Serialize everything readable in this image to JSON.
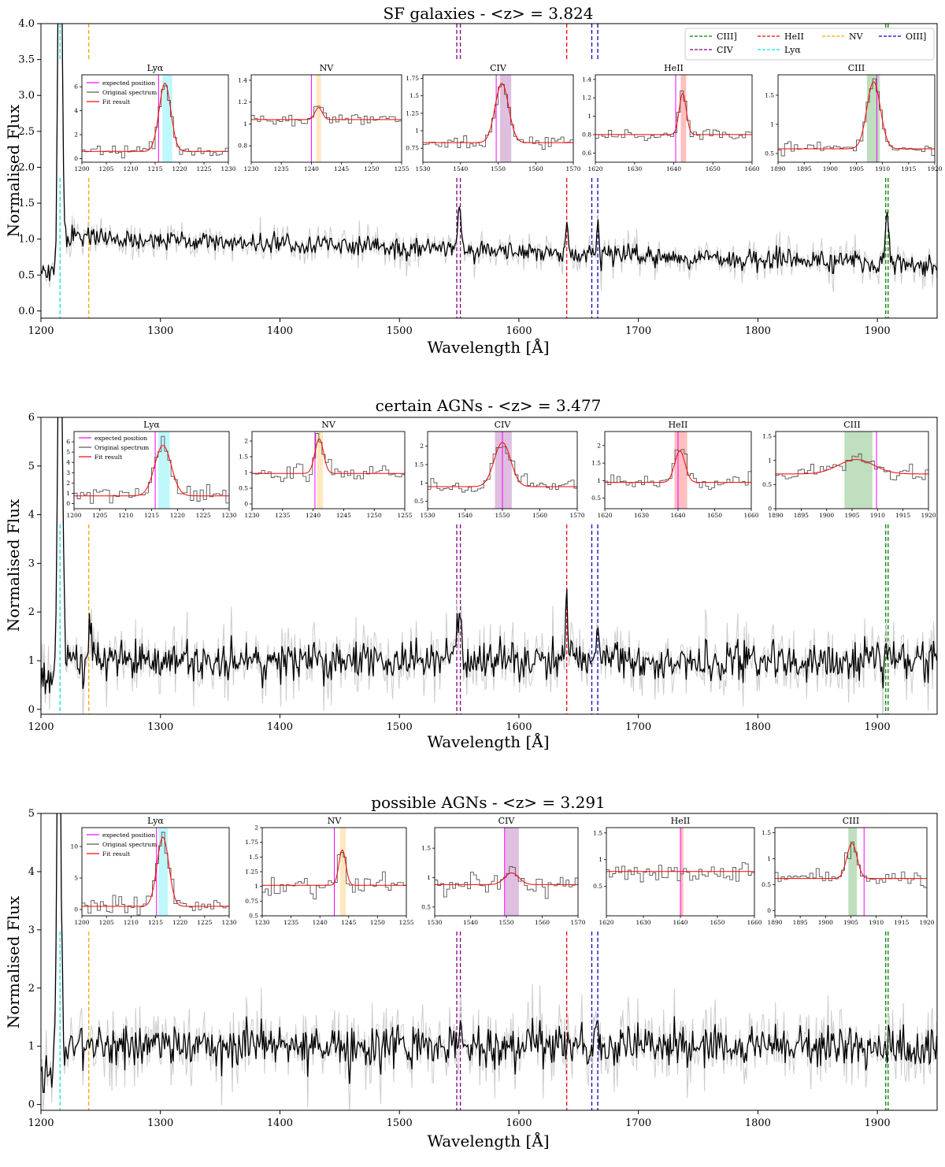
{
  "figure": {
    "xlabel": "Wavelength [Å]",
    "ylabel": "Normalised Flux"
  },
  "legend": {
    "items": [
      {
        "label": "CIII]",
        "color": "#008000"
      },
      {
        "label": "CIV",
        "color": "#800080"
      },
      {
        "label": "HeII",
        "color": "#ff0000"
      },
      {
        "label": "Lyα",
        "color": "#00e5ee"
      },
      {
        "label": "NV",
        "color": "#ffa500"
      },
      {
        "label": "OIII]",
        "color": "#0000cd"
      }
    ]
  },
  "inset_legend": {
    "items": [
      {
        "label": "expected position",
        "color": "#ff00ff"
      },
      {
        "label": "Original spectrum",
        "color": "#555555"
      },
      {
        "label": "Fit result",
        "color": "#ff0000"
      }
    ]
  },
  "chart_data": [
    {
      "type": "line",
      "title": "SF galaxies - <z> = 3.824",
      "xlabel": "Wavelength [Å]",
      "ylabel": "Normalised Flux",
      "xlim": [
        1200,
        1950
      ],
      "ylim": [
        -0.1,
        4.0
      ],
      "xticks": [
        1200,
        1300,
        1400,
        1500,
        1600,
        1700,
        1800,
        1900
      ],
      "yticks": [
        0.0,
        0.5,
        1.0,
        1.5,
        2.0,
        2.5,
        3.0,
        3.5,
        4.0
      ],
      "ytick_labels": [
        "0.0",
        "0.5",
        "1.0",
        "1.5",
        "2.0",
        "2.5",
        "3.0",
        "3.5",
        "4.0"
      ],
      "continuum": 1.0,
      "noise": 0.12,
      "features": [
        {
          "x": 1216,
          "amp": 6.0,
          "sigma": 1.5
        },
        {
          "x": 1550,
          "amp": 0.6,
          "sigma": 1.5
        },
        {
          "x": 1640,
          "amp": 0.4,
          "sigma": 1.0
        },
        {
          "x": 1666,
          "amp": 0.45,
          "sigma": 1.0
        },
        {
          "x": 1908,
          "amp": 0.7,
          "sigma": 1.5
        }
      ],
      "series": [
        {
          "name": "CIII]",
          "color": "#008000",
          "x": [
            1907,
            1909
          ]
        },
        {
          "name": "CIV",
          "color": "#800080",
          "x": [
            1548,
            1551
          ]
        },
        {
          "name": "HeII",
          "color": "#ff0000",
          "x": [
            1640
          ]
        },
        {
          "name": "Lyα",
          "color": "#00e5ee",
          "x": [
            1216
          ]
        },
        {
          "name": "NV",
          "color": "#ffa500",
          "x": [
            1240
          ]
        },
        {
          "name": "OIII]",
          "color": "#0000cd",
          "x": [
            1661,
            1666
          ]
        }
      ],
      "insets": [
        {
          "title": "Lyα",
          "xlim": [
            1200,
            1230
          ],
          "xticks": [
            1200,
            1205,
            1210,
            1215,
            1220,
            1225,
            1230
          ],
          "ylim": [
            -0.3,
            7.0
          ],
          "yticks": [
            0,
            2,
            4,
            6
          ],
          "expected": 1215.7,
          "band": [
            1216.5,
            1218.5
          ],
          "band_color": "#00e5ee",
          "fit": {
            "center": 1217.0,
            "amp": 5.7,
            "sigma": 1.2,
            "base": 0.6
          },
          "legend": true
        },
        {
          "title": "NV",
          "xlim": [
            1230,
            1255
          ],
          "xticks": [
            1230,
            1235,
            1240,
            1245,
            1250,
            1255
          ],
          "ylim": [
            0.65,
            1.45
          ],
          "yticks": [
            0.8,
            1.0,
            1.2,
            1.4
          ],
          "expected": 1240.0,
          "band": [
            1240.8,
            1241.6
          ],
          "band_color": "#ffa500",
          "fit": {
            "center": 1241.2,
            "amp": 0.11,
            "sigma": 0.6,
            "base": 1.04
          }
        },
        {
          "title": "CIV",
          "xlim": [
            1530,
            1570
          ],
          "xticks": [
            1530,
            1540,
            1550,
            1560,
            1570
          ],
          "ylim": [
            0.55,
            1.8
          ],
          "yticks": [
            0.75,
            1.0,
            1.25,
            1.5,
            1.75
          ],
          "expected": 1549.5,
          "band": [
            1550.5,
            1553.5
          ],
          "band_color": "#800080",
          "fit": {
            "center": 1551.0,
            "amp": 0.85,
            "sigma": 1.8,
            "base": 0.83
          }
        },
        {
          "title": "HeII",
          "xlim": [
            1620,
            1660
          ],
          "xticks": [
            1620,
            1630,
            1640,
            1650,
            1660
          ],
          "ylim": [
            0.5,
            1.45
          ],
          "yticks": [
            0.6,
            0.8,
            1.0,
            1.2,
            1.4
          ],
          "expected": 1640.5,
          "band": [
            1641.8,
            1643.2
          ],
          "band_color": "#ff0000",
          "fit": {
            "center": 1642.3,
            "amp": 0.45,
            "sigma": 0.9,
            "base": 0.8
          }
        },
        {
          "title": "CIII",
          "xlim": [
            1890,
            1920
          ],
          "xticks": [
            1890,
            1895,
            1900,
            1905,
            1910,
            1915,
            1920
          ],
          "ylim": [
            0.35,
            1.85
          ],
          "yticks": [
            0.5,
            1.0,
            1.5
          ],
          "expected": 1908.9,
          "band": [
            1907.0,
            1909.5
          ],
          "band_color": "#008000",
          "fit": {
            "center": 1908.3,
            "amp": 1.15,
            "sigma": 1.3,
            "base": 0.58
          }
        }
      ]
    },
    {
      "type": "line",
      "title": "certain AGNs - <z> = 3.477",
      "xlabel": "Wavelength [Å]",
      "ylabel": "Normalised Flux",
      "xlim": [
        1200,
        1950
      ],
      "ylim": [
        -0.1,
        6.0
      ],
      "xticks": [
        1200,
        1300,
        1400,
        1500,
        1600,
        1700,
        1800,
        1900
      ],
      "yticks": [
        0,
        1,
        2,
        3,
        4,
        5,
        6
      ],
      "ytick_labels": [
        "0",
        "1",
        "2",
        "3",
        "4",
        "5",
        "6"
      ],
      "continuum": 1.0,
      "noise": 0.35,
      "features": [
        {
          "x": 1216,
          "amp": 8.0,
          "sigma": 1.8
        },
        {
          "x": 1241,
          "amp": 1.0,
          "sigma": 1.2
        },
        {
          "x": 1550,
          "amp": 1.2,
          "sigma": 1.6
        },
        {
          "x": 1640,
          "amp": 1.3,
          "sigma": 1.0
        },
        {
          "x": 1666,
          "amp": 0.6,
          "sigma": 1.0
        }
      ],
      "series": [
        {
          "name": "CIII]",
          "color": "#008000",
          "x": [
            1907,
            1909
          ]
        },
        {
          "name": "CIV",
          "color": "#800080",
          "x": [
            1548,
            1551
          ]
        },
        {
          "name": "HeII",
          "color": "#ff0000",
          "x": [
            1640
          ]
        },
        {
          "name": "Lyα",
          "color": "#00e5ee",
          "x": [
            1216
          ]
        },
        {
          "name": "NV",
          "color": "#ffa500",
          "x": [
            1240
          ]
        },
        {
          "name": "OIII]",
          "color": "#0000cd",
          "x": [
            1661,
            1666
          ]
        }
      ],
      "insets": [
        {
          "title": "Lyα",
          "xlim": [
            1200,
            1230
          ],
          "xticks": [
            1200,
            1205,
            1210,
            1215,
            1220,
            1225,
            1230
          ],
          "ylim": [
            -0.5,
            7.0
          ],
          "yticks": [
            0,
            1,
            2,
            3,
            4,
            5,
            6
          ],
          "expected": 1215.7,
          "band": [
            1216.3,
            1218.5
          ],
          "band_color": "#00e5ee",
          "fit": {
            "center": 1217.2,
            "amp": 4.9,
            "sigma": 1.6,
            "base": 0.75
          },
          "legend": true
        },
        {
          "title": "NV",
          "xlim": [
            1230,
            1255
          ],
          "xticks": [
            1230,
            1235,
            1240,
            1245,
            1250,
            1255
          ],
          "ylim": [
            -0.15,
            2.3
          ],
          "yticks": [
            0.0,
            0.5,
            1.0,
            1.5,
            2.0
          ],
          "expected": 1240.3,
          "band": [
            1240.6,
            1241.6
          ],
          "band_color": "#ffa500",
          "fit": {
            "center": 1241.0,
            "amp": 1.1,
            "sigma": 0.7,
            "base": 0.97
          }
        },
        {
          "title": "CIV",
          "xlim": [
            1530,
            1570
          ],
          "xticks": [
            1530,
            1540,
            1550,
            1560,
            1570
          ],
          "ylim": [
            0.3,
            2.4
          ],
          "yticks": [
            0.5,
            1.0,
            1.5,
            2.0
          ],
          "expected": 1550.0,
          "band": [
            1548.0,
            1552.5
          ],
          "band_color": "#800080",
          "fit": {
            "center": 1550.0,
            "amp": 1.2,
            "sigma": 2.2,
            "base": 0.9
          }
        },
        {
          "title": "HeII",
          "xlim": [
            1620,
            1660
          ],
          "xticks": [
            1620,
            1630,
            1640,
            1650,
            1660
          ],
          "ylim": [
            0.2,
            2.4
          ],
          "yticks": [
            0.5,
            1.0,
            1.5,
            2.0
          ],
          "expected": 1640.0,
          "band": [
            1639.0,
            1642.5
          ],
          "band_color": "#ff0000",
          "fit": {
            "center": 1640.5,
            "amp": 0.9,
            "sigma": 1.4,
            "base": 0.95
          }
        },
        {
          "title": "CIII",
          "xlim": [
            1890,
            1920
          ],
          "xticks": [
            1890,
            1895,
            1900,
            1905,
            1910,
            1915,
            1920
          ],
          "ylim": [
            0.0,
            1.6
          ],
          "yticks": [
            0.0,
            0.5,
            1.0,
            1.5
          ],
          "expected": 1909.8,
          "band": [
            1903.5,
            1909.0
          ],
          "band_color": "#008000",
          "fit": {
            "center": 1905.8,
            "amp": 0.3,
            "sigma": 3.5,
            "base": 0.72
          }
        }
      ]
    },
    {
      "type": "line",
      "title": "possible AGNs - <z> = 3.291",
      "xlabel": "Wavelength [Å]",
      "ylabel": "Normalised Flux",
      "xlim": [
        1200,
        1950
      ],
      "ylim": [
        -0.1,
        5.0
      ],
      "xticks": [
        1200,
        1300,
        1400,
        1500,
        1600,
        1700,
        1800,
        1900
      ],
      "yticks": [
        0,
        1,
        2,
        3,
        4,
        5
      ],
      "ytick_labels": [
        "0",
        "1",
        "2",
        "3",
        "4",
        "5"
      ],
      "continuum": 1.0,
      "noise": 0.3,
      "features": [
        {
          "x": 1215,
          "amp": 7.0,
          "sigma": 1.5
        },
        {
          "x": 1550,
          "amp": 0.3,
          "sigma": 2.0
        },
        {
          "x": 1666,
          "amp": 0.4,
          "sigma": 1.0
        }
      ],
      "series": [
        {
          "name": "CIII]",
          "color": "#008000",
          "x": [
            1907,
            1909
          ]
        },
        {
          "name": "CIV",
          "color": "#800080",
          "x": [
            1548,
            1551
          ]
        },
        {
          "name": "HeII",
          "color": "#ff0000",
          "x": [
            1640
          ]
        },
        {
          "name": "Lyα",
          "color": "#00e5ee",
          "x": [
            1216
          ]
        },
        {
          "name": "NV",
          "color": "#ffa500",
          "x": [
            1240
          ]
        },
        {
          "name": "OIII]",
          "color": "#0000cd",
          "x": [
            1661,
            1666
          ]
        }
      ],
      "insets": [
        {
          "title": "Lyα",
          "xlim": [
            1200,
            1230
          ],
          "xticks": [
            1200,
            1205,
            1210,
            1215,
            1220,
            1225,
            1230
          ],
          "ylim": [
            -1.0,
            13.0
          ],
          "yticks": [
            0,
            5,
            10
          ],
          "expected": 1215.2,
          "band": [
            1215.6,
            1217.5
          ],
          "band_color": "#00e5ee",
          "fit": {
            "center": 1216.5,
            "amp": 11.0,
            "sigma": 1.2,
            "base": 0.5
          },
          "legend": true
        },
        {
          "title": "NV",
          "xlim": [
            1230,
            1255
          ],
          "xticks": [
            1230,
            1235,
            1240,
            1245,
            1250,
            1255
          ],
          "ylim": [
            0.5,
            2.0
          ],
          "yticks": [
            0.5,
            0.75,
            1.0,
            1.25,
            1.5,
            1.75,
            2.0
          ],
          "expected": 1242.5,
          "band": [
            1243.5,
            1244.5
          ],
          "band_color": "#ffa500",
          "fit": {
            "center": 1243.9,
            "amp": 0.6,
            "sigma": 0.6,
            "base": 1.02
          }
        },
        {
          "title": "CIV",
          "xlim": [
            1530,
            1570
          ],
          "xticks": [
            1530,
            1540,
            1550,
            1560,
            1570
          ],
          "ylim": [
            0.35,
            1.85
          ],
          "yticks": [
            0.5,
            1.0,
            1.5
          ],
          "expected": 1549.5,
          "band": [
            1549.5,
            1553.5
          ],
          "band_color": "#800080",
          "fit": {
            "center": 1551.5,
            "amp": 0.2,
            "sigma": 2.0,
            "base": 0.88
          }
        },
        {
          "title": "HeII",
          "xlim": [
            1620,
            1660
          ],
          "xticks": [
            1620,
            1630,
            1640,
            1650,
            1660
          ],
          "ylim": [
            -0.05,
            1.6
          ],
          "yticks": [
            0.5,
            1.0,
            1.5
          ],
          "expected": 1640.0,
          "band": [
            1640.0,
            1640.8
          ],
          "band_color": "#ff0000",
          "fit": {
            "center": 1640.5,
            "amp": 0.0,
            "sigma": 1.0,
            "base": 0.78
          }
        },
        {
          "title": "CIII",
          "xlim": [
            1890,
            1920
          ],
          "xticks": [
            1890,
            1895,
            1900,
            1905,
            1910,
            1915,
            1920
          ],
          "ylim": [
            -0.1,
            1.6
          ],
          "yticks": [
            0.0,
            0.5,
            1.0,
            1.5
          ],
          "expected": 1907.6,
          "band": [
            1904.5,
            1906.2
          ],
          "band_color": "#008000",
          "fit": {
            "center": 1905.2,
            "amp": 0.68,
            "sigma": 1.0,
            "base": 0.62
          }
        }
      ]
    }
  ]
}
